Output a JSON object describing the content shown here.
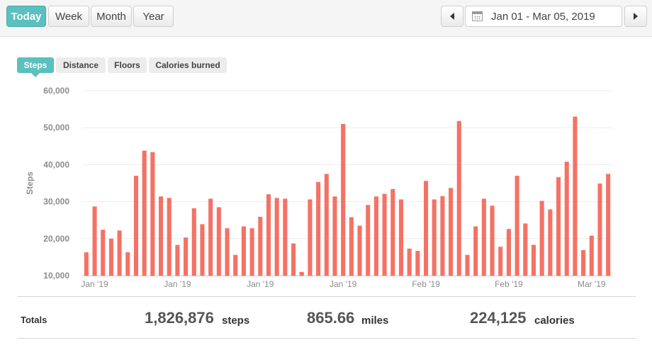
{
  "period_buttons": [
    {
      "label": "Today",
      "active": true
    },
    {
      "label": "Week",
      "active": false
    },
    {
      "label": "Month",
      "active": false
    },
    {
      "label": "Year",
      "active": false
    }
  ],
  "date_range": "Jan 01 - Mar 05, 2019",
  "metric_tabs": [
    {
      "label": "Steps",
      "active": true
    },
    {
      "label": "Distance",
      "active": false
    },
    {
      "label": "Floors",
      "active": false
    },
    {
      "label": "Calories burned",
      "active": false
    }
  ],
  "colors": {
    "accent": "#5bc0be",
    "bar": "#f47265"
  },
  "chart_data": {
    "type": "bar",
    "ylabel": "Steps",
    "ylim": [
      10000,
      60000
    ],
    "yticks": [
      "10,000",
      "20,000",
      "30,000",
      "40,000",
      "50,000",
      "60,000"
    ],
    "xticks": [
      {
        "label": "Jan '19",
        "index": 1
      },
      {
        "label": "Jan '19",
        "index": 11
      },
      {
        "label": "Jan '19",
        "index": 21
      },
      {
        "label": "Jan '19",
        "index": 31
      },
      {
        "label": "Feb '19",
        "index": 41
      },
      {
        "label": "Feb '19",
        "index": 51
      },
      {
        "label": "Mar '19",
        "index": 61
      }
    ],
    "values": [
      16300,
      28700,
      22400,
      20000,
      22200,
      16300,
      37000,
      43800,
      43400,
      31400,
      31000,
      18300,
      20300,
      28200,
      23900,
      30800,
      28500,
      22800,
      15600,
      23300,
      22800,
      25900,
      32000,
      31000,
      30800,
      18700,
      11000,
      30600,
      35300,
      37500,
      31400,
      51000,
      25800,
      23500,
      29100,
      31400,
      32100,
      33400,
      30600,
      17300,
      16700,
      35600,
      30600,
      31500,
      33700,
      51800,
      15600,
      23300,
      30800,
      28900,
      17800,
      22600,
      37000,
      24100,
      18300,
      30200,
      27900,
      36600,
      40800,
      53000,
      16900,
      20800,
      34900,
      37500
    ]
  },
  "totals": {
    "label": "Totals",
    "steps_value": "1,826,876",
    "steps_unit": "steps",
    "miles_value": "865.66",
    "miles_unit": "miles",
    "calories_value": "224,125",
    "calories_unit": "calories"
  }
}
